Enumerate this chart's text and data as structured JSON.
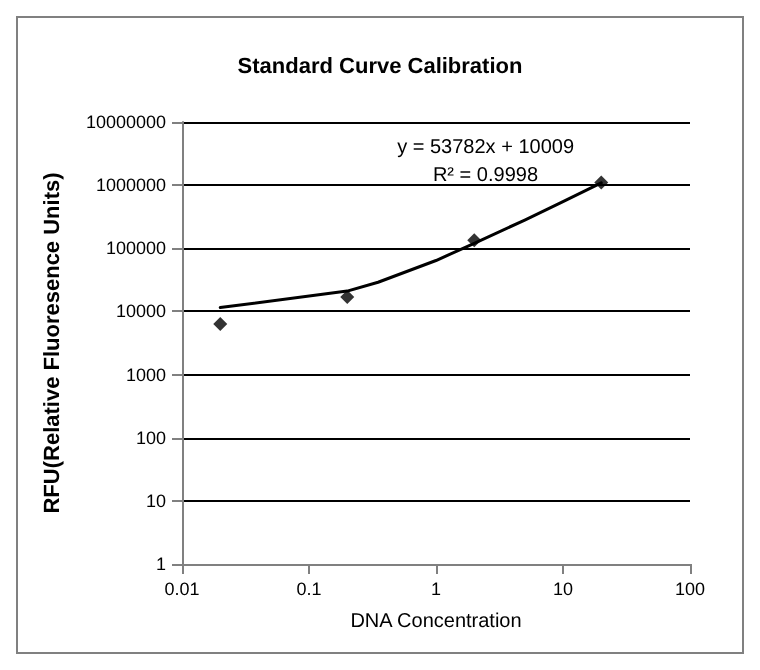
{
  "chart_data": {
    "type": "scatter",
    "title": "Standard Curve Calibration",
    "xlabel": "DNA Concentration",
    "ylabel": "RFU(Relative Fluoresence Units)",
    "x": [
      0.02,
      0.2,
      2,
      20
    ],
    "series": [
      {
        "color": "#000000",
        "values": [
          6300,
          17000,
          134000,
          1100000
        ]
      },
      {
        "type": "line",
        "color": "#000000",
        "x": [
          0.02,
          0.2,
          0.35,
          1,
          2,
          5,
          10,
          20
        ],
        "values": [
          11500,
          21000,
          29000,
          64000,
          120000,
          280000,
          550000,
          1090000
        ],
        "marker": "none"
      }
    ],
    "annotations": [
      "y = 53782x + 10009",
      "R² = 0.9998"
    ],
    "log": "xy",
    "xlim": [
      0.01,
      100
    ],
    "ylim": [
      1,
      10000000
    ],
    "xticks": [
      0.01,
      0.1,
      1,
      10,
      100
    ],
    "yticks": [
      1,
      10,
      100,
      1000,
      10000,
      100000,
      1000000,
      10000000
    ],
    "grid": "y",
    "marker": "diamond",
    "line_style": "solid"
  }
}
